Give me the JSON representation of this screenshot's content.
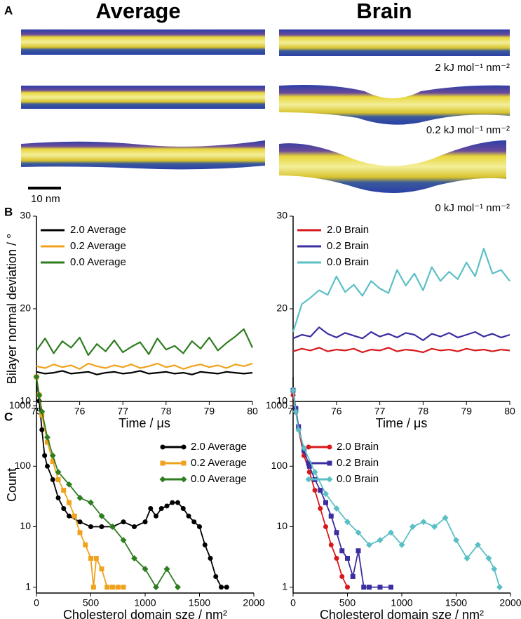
{
  "panel_labels": [
    "A",
    "B",
    "C"
  ],
  "panel_a": {
    "column_titles": [
      "Average",
      "Brain"
    ],
    "scale_bar": "10 nm",
    "conditions": [
      "2 kJ mol⁻¹ nm⁻²",
      "0.2 kJ mol⁻¹ nm⁻²",
      "0 kJ mol⁻¹ nm⁻²"
    ]
  },
  "chart_data": [
    {
      "type": "line",
      "y_label": "Bilayer normal deviation / °",
      "x_label": "Time / μs",
      "xlim": [
        75,
        80
      ],
      "xticks": [
        75,
        76,
        77,
        78,
        79,
        80
      ],
      "ylim": [
        10,
        30
      ],
      "yticks": [
        10,
        20,
        30
      ],
      "log_y": false,
      "legend": "top-left",
      "x": [
        75,
        75.2,
        75.4,
        75.6,
        75.8,
        76,
        76.2,
        76.4,
        76.6,
        76.8,
        77,
        77.2,
        77.4,
        77.6,
        77.8,
        78,
        78.2,
        78.4,
        78.6,
        78.8,
        79,
        79.2,
        79.4,
        79.6,
        79.8,
        80
      ],
      "series": [
        {
          "name": "2.0 Average",
          "color": "#000000",
          "values": [
            13.2,
            13.0,
            13.1,
            13.3,
            13.0,
            13.1,
            13.2,
            12.9,
            13.1,
            13.2,
            13.0,
            13.1,
            13.3,
            13.0,
            13.1,
            13.2,
            13.0,
            13.1,
            12.9,
            13.2,
            13.1,
            13.0,
            13.2,
            13.1,
            13.0,
            13.1
          ]
        },
        {
          "name": "0.2 Average",
          "color": "#f0a21c",
          "values": [
            13.8,
            13.6,
            14.0,
            13.7,
            13.9,
            13.5,
            14.1,
            13.8,
            13.6,
            13.9,
            13.7,
            14.0,
            13.6,
            13.8,
            14.1,
            13.7,
            13.9,
            13.5,
            13.8,
            14.0,
            13.7,
            13.9,
            13.6,
            14.0,
            13.8,
            14.1
          ]
        },
        {
          "name": "0.0 Average",
          "color": "#2e7d20",
          "values": [
            15.5,
            16.8,
            15.2,
            16.5,
            15.8,
            16.9,
            15.0,
            16.2,
            15.4,
            16.6,
            15.3,
            15.9,
            16.4,
            15.1,
            16.8,
            15.6,
            16.0,
            15.2,
            16.5,
            15.7,
            16.9,
            15.5,
            16.3,
            17.0,
            17.8,
            15.8
          ]
        }
      ]
    },
    {
      "type": "line",
      "x_label": "Time / μs",
      "xlim": [
        75,
        80
      ],
      "xticks": [
        75,
        76,
        77,
        78,
        79,
        80
      ],
      "ylim": [
        10,
        30
      ],
      "yticks": [
        10,
        20,
        30
      ],
      "log_y": false,
      "legend": "top-left",
      "x": [
        75,
        75.2,
        75.4,
        75.6,
        75.8,
        76,
        76.2,
        76.4,
        76.6,
        76.8,
        77,
        77.2,
        77.4,
        77.6,
        77.8,
        78,
        78.2,
        78.4,
        78.6,
        78.8,
        79,
        79.2,
        79.4,
        79.6,
        79.8,
        80
      ],
      "series": [
        {
          "name": "2.0 Brain",
          "color": "#d7191c",
          "values": [
            15.4,
            15.7,
            15.5,
            15.8,
            15.4,
            15.6,
            15.5,
            15.7,
            15.3,
            15.6,
            15.5,
            15.8,
            15.4,
            15.6,
            15.5,
            15.3,
            15.7,
            15.5,
            15.6,
            15.4,
            15.7,
            15.5,
            15.6,
            15.4,
            15.6,
            15.5
          ]
        },
        {
          "name": "0.2 Brain",
          "color": "#3a2ea0",
          "values": [
            16.8,
            17.2,
            17.0,
            18.0,
            17.3,
            16.9,
            17.4,
            17.1,
            16.8,
            17.5,
            17.0,
            17.3,
            16.9,
            17.4,
            17.2,
            16.6,
            17.3,
            17.0,
            17.4,
            16.9,
            17.2,
            17.5,
            17.0,
            17.3,
            16.9,
            17.2
          ]
        },
        {
          "name": "0.0 Brain",
          "color": "#5bbfc6",
          "values": [
            17.5,
            20.5,
            21.2,
            22.0,
            21.5,
            23.5,
            21.8,
            22.6,
            21.4,
            23.0,
            22.2,
            21.7,
            24.2,
            22.5,
            23.8,
            22.0,
            24.5,
            23.0,
            24.0,
            23.2,
            25.0,
            23.5,
            26.5,
            23.8,
            24.2,
            23.0
          ]
        }
      ]
    },
    {
      "type": "line",
      "y_label": "Count",
      "x_label": "Cholesterol domain sze / nm²",
      "xlim": [
        0,
        2000
      ],
      "xticks": [
        0,
        500,
        1000,
        1500,
        2000
      ],
      "ylim": [
        0.8,
        3000
      ],
      "yticks": [
        1,
        10,
        100,
        1000
      ],
      "log_y": true,
      "legend": "top-right",
      "series": [
        {
          "name": "2.0 Average",
          "color": "#000000",
          "marker": "circle",
          "x": [
            0,
            25,
            50,
            75,
            100,
            150,
            200,
            250,
            300,
            400,
            500,
            600,
            700,
            800,
            900,
            1000,
            1050,
            1100,
            1150,
            1200,
            1250,
            1300,
            1350,
            1400,
            1450,
            1500,
            1550,
            1600,
            1650,
            1700,
            1750
          ],
          "values": [
            3000,
            1200,
            400,
            150,
            100,
            60,
            30,
            20,
            15,
            12,
            10,
            10,
            10,
            12,
            10,
            12,
            20,
            15,
            20,
            22,
            25,
            25,
            20,
            15,
            12,
            10,
            5,
            3,
            1.5,
            1,
            1
          ]
        },
        {
          "name": "0.2 Average",
          "color": "#f0a21c",
          "marker": "square",
          "x": [
            0,
            25,
            50,
            100,
            150,
            200,
            250,
            300,
            350,
            400,
            450,
            500,
            525,
            550,
            600,
            650,
            700,
            750,
            800
          ],
          "values": [
            3000,
            1500,
            700,
            250,
            120,
            60,
            40,
            25,
            15,
            8,
            5,
            3,
            1,
            3,
            2,
            1,
            1,
            1,
            1
          ]
        },
        {
          "name": "0.0 Average",
          "color": "#2e7d20",
          "marker": "diamond",
          "x": [
            0,
            25,
            50,
            100,
            150,
            200,
            300,
            400,
            500,
            600,
            700,
            800,
            900,
            1000,
            1100,
            1200,
            1300
          ],
          "values": [
            3000,
            1500,
            800,
            300,
            150,
            80,
            50,
            30,
            25,
            15,
            10,
            6,
            3,
            2,
            1,
            2,
            1
          ]
        }
      ]
    },
    {
      "type": "line",
      "x_label": "Cholesterol domain sze / nm²",
      "xlim": [
        0,
        2000
      ],
      "xticks": [
        0,
        500,
        1000,
        1500,
        2000
      ],
      "ylim": [
        0.8,
        3000
      ],
      "yticks": [
        1,
        10,
        100,
        1000
      ],
      "log_y": true,
      "legend": "top-left",
      "series": [
        {
          "name": "2.0 Brain",
          "color": "#d7191c",
          "marker": "circle",
          "x": [
            0,
            25,
            50,
            100,
            150,
            200,
            250,
            300,
            350,
            400,
            450,
            500
          ],
          "values": [
            1500,
            800,
            400,
            150,
            80,
            40,
            20,
            10,
            5,
            3,
            1.5,
            1
          ]
        },
        {
          "name": "0.2 Brain",
          "color": "#3a2ea0",
          "marker": "square",
          "x": [
            0,
            25,
            50,
            100,
            150,
            200,
            250,
            300,
            350,
            400,
            450,
            500,
            550,
            600,
            650,
            700,
            800,
            900
          ],
          "values": [
            1800,
            900,
            450,
            180,
            100,
            60,
            40,
            25,
            15,
            8,
            4,
            3,
            1.5,
            4,
            1,
            1,
            1,
            1
          ]
        },
        {
          "name": "0.0 Brain",
          "color": "#5bbfc6",
          "marker": "diamond",
          "x": [
            0,
            25,
            50,
            100,
            200,
            300,
            400,
            500,
            600,
            700,
            800,
            900,
            1000,
            1100,
            1200,
            1300,
            1400,
            1500,
            1600,
            1700,
            1800,
            1850,
            1900
          ],
          "values": [
            1800,
            800,
            400,
            200,
            80,
            35,
            20,
            12,
            8,
            5,
            6,
            8,
            5,
            10,
            12,
            10,
            14,
            6,
            3,
            5,
            3,
            2,
            1
          ]
        }
      ]
    }
  ]
}
